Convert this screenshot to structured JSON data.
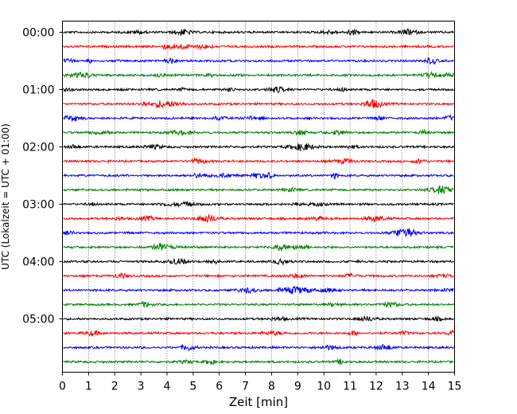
{
  "chart_data": {
    "type": "line",
    "subtype": "helicorder",
    "title": "",
    "xlabel": "Zeit  [min]",
    "ylabel": "UTC (Lokalzeit = UTC + 01:00)",
    "xlim": [
      0,
      15
    ],
    "x_ticks": [
      0,
      1,
      2,
      3,
      4,
      5,
      6,
      7,
      8,
      9,
      10,
      11,
      12,
      13,
      14,
      15
    ],
    "x_grid": true,
    "x_grid_style": "dotted",
    "minutes_per_line": 15,
    "line_count": 24,
    "line_colors": [
      "#000000",
      "#ff0000",
      "#0000ff",
      "#008000"
    ],
    "y_tick_labels": [
      "00:00",
      "01:00",
      "02:00",
      "03:00",
      "04:00",
      "05:00"
    ],
    "y_tick_every_lines": 4
  }
}
